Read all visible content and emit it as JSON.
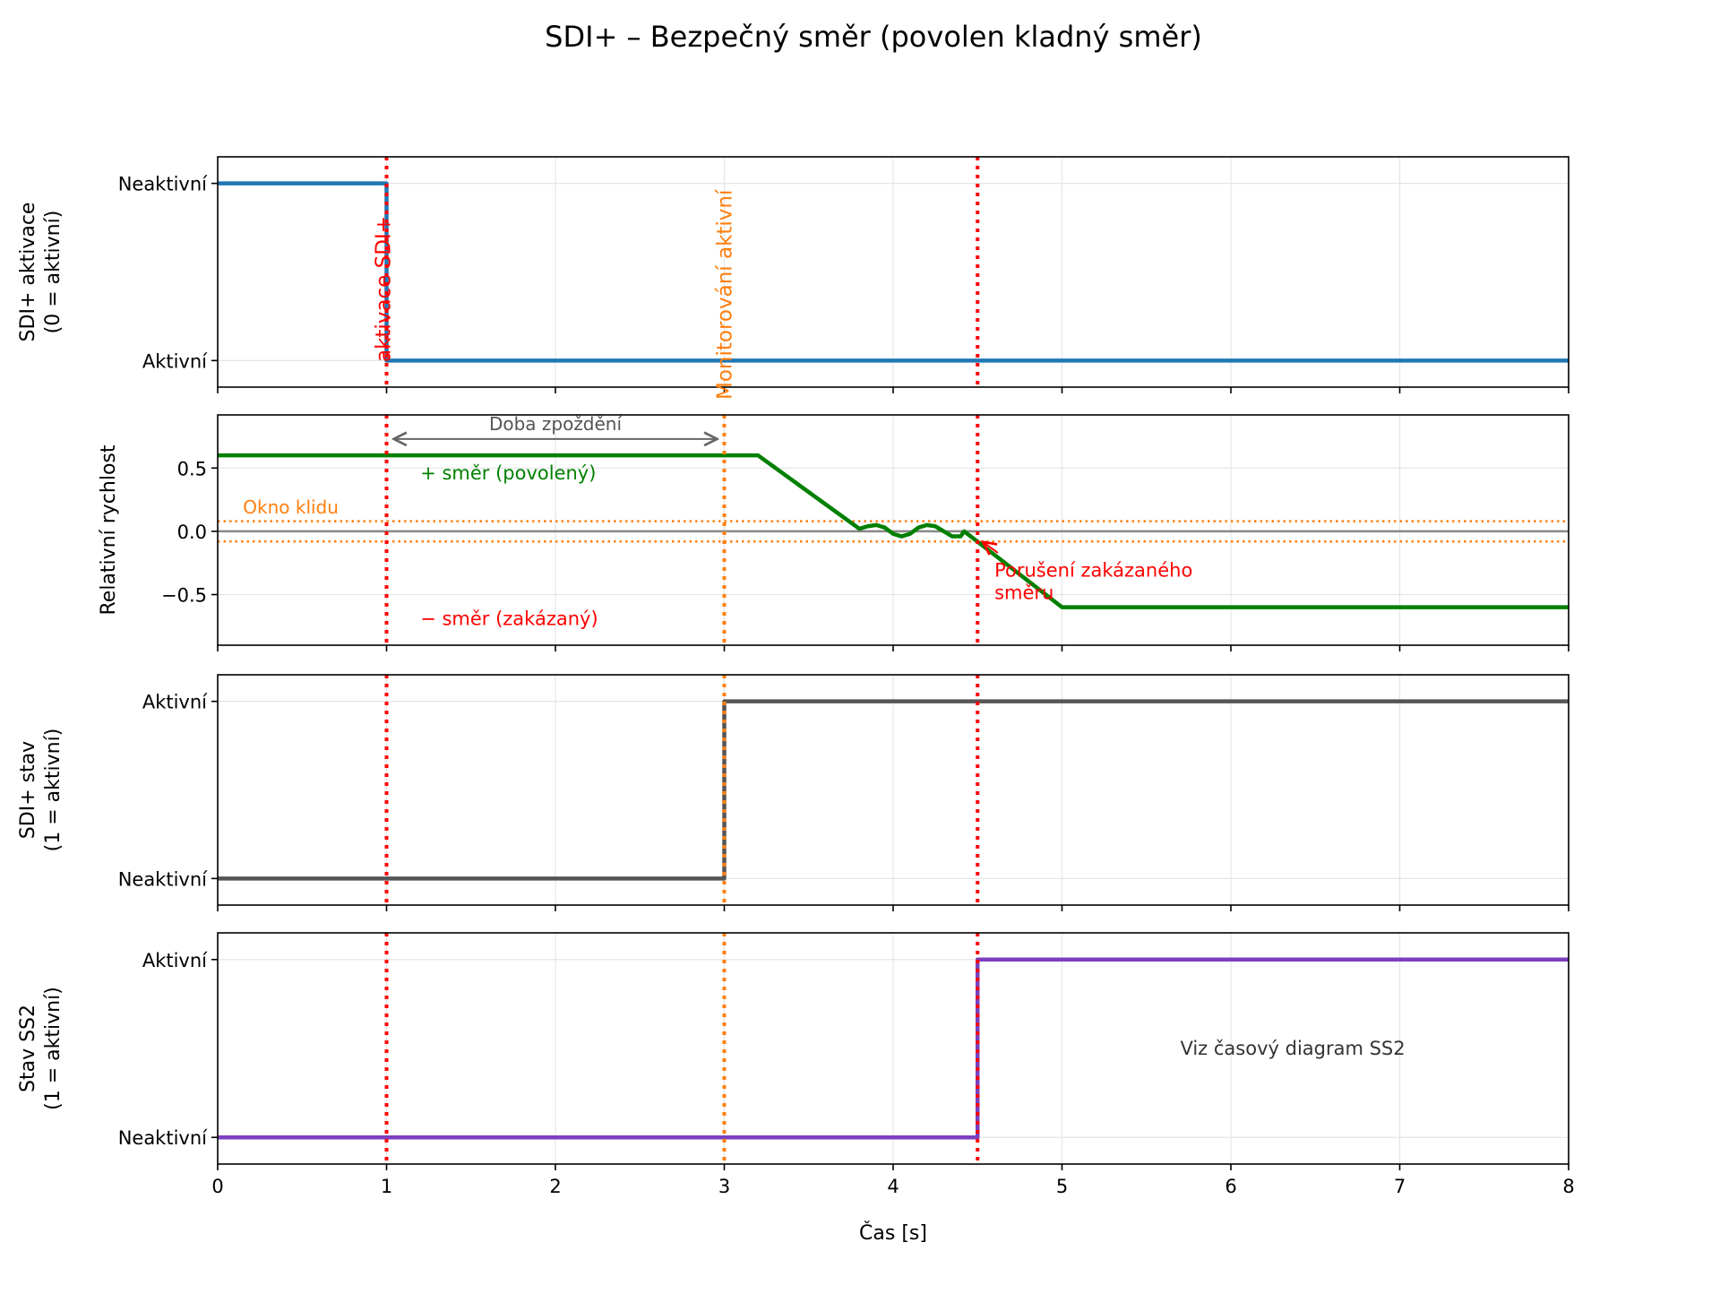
{
  "chart_data": {
    "type": "line",
    "title": "SDI+ – Bezpečný směr (povolen kladný směr)",
    "xlabel": "Čas [s]",
    "xlim": [
      0,
      8
    ],
    "xticks": [
      0,
      1,
      2,
      3,
      4,
      5,
      6,
      7,
      8
    ],
    "grid": true,
    "events": [
      {
        "x": 1,
        "color": "#ff0000",
        "label": "aktivace SDI+"
      },
      {
        "x": 3,
        "color": "#ff7f0e",
        "label": "Monitorování aktivní"
      },
      {
        "x": 4.5,
        "color": "#ff0000",
        "label": ""
      }
    ],
    "panels": [
      {
        "ylabel": [
          "SDI+ aktivace",
          "(0 = aktivní)"
        ],
        "ylim": [
          -0.15,
          1.15
        ],
        "yticks": [
          {
            "v": 1,
            "label": "Neaktivní"
          },
          {
            "v": 0,
            "label": "Aktivní"
          }
        ],
        "series": [
          {
            "name": "SDI+ aktivace",
            "color": "#1f77b4",
            "step": true,
            "x": [
              0,
              1,
              1,
              8
            ],
            "y": [
              1,
              1,
              0,
              0
            ]
          }
        ],
        "event_lines": [
          0,
          2
        ]
      },
      {
        "ylabel": [
          "Relativní rychlost"
        ],
        "ylim": [
          -0.9,
          0.92
        ],
        "yticks": [
          {
            "v": 0.5,
            "label": "0.5"
          },
          {
            "v": 0,
            "label": "0.0"
          },
          {
            "v": -0.5,
            "label": "−0.5"
          }
        ],
        "series": [
          {
            "name": "Relativní rychlost",
            "color": "#008000",
            "x": [
              0,
              3.2,
              3.8,
              3.85,
              3.9,
              3.95,
              4.0,
              4.05,
              4.1,
              4.15,
              4.2,
              4.25,
              4.3,
              4.35,
              4.4,
              4.42,
              4.45,
              5.0,
              8
            ],
            "y": [
              0.6,
              0.6,
              0.02,
              0.04,
              0.05,
              0.03,
              -0.02,
              -0.04,
              -0.02,
              0.03,
              0.05,
              0.04,
              0.0,
              -0.04,
              -0.04,
              0.0,
              -0.03,
              -0.6,
              -0.6
            ]
          }
        ],
        "zero_line": 0,
        "standstill_window": 0.08,
        "standstill_label": "Okno klidu",
        "delay_label": "Doba zpoždění",
        "delay_range": [
          1,
          3
        ],
        "positive_label": "+ směr (povolený)",
        "negative_label": "− směr (zakázaný)",
        "violation_label": [
          "Porušení zakázaného",
          "směru"
        ],
        "violation_point": [
          4.5,
          -0.07
        ],
        "event_lines": [
          0,
          1,
          2
        ]
      },
      {
        "ylabel": [
          "SDI+ stav",
          "(1 = aktivní)"
        ],
        "ylim": [
          -0.15,
          1.15
        ],
        "yticks": [
          {
            "v": 1,
            "label": "Aktivní"
          },
          {
            "v": 0,
            "label": "Neaktivní"
          }
        ],
        "series": [
          {
            "name": "SDI+ stav",
            "color": "#555555",
            "x": [
              0,
              3,
              3,
              8
            ],
            "y": [
              0,
              0,
              1,
              1
            ]
          }
        ],
        "event_lines": [
          0,
          1,
          2
        ]
      },
      {
        "ylabel": [
          "Stav SS2",
          "(1 = aktivní)"
        ],
        "ylim": [
          -0.15,
          1.15
        ],
        "yticks": [
          {
            "v": 1,
            "label": "Aktivní"
          },
          {
            "v": 0,
            "label": "Neaktivní"
          }
        ],
        "series": [
          {
            "name": "Stav SS2",
            "color": "#7b3fbf",
            "x": [
              0,
              4.5,
              4.5,
              8
            ],
            "y": [
              0,
              0,
              1,
              1
            ]
          }
        ],
        "note": "Viz časový diagram SS2",
        "event_lines": [
          0,
          1,
          2
        ]
      }
    ]
  }
}
